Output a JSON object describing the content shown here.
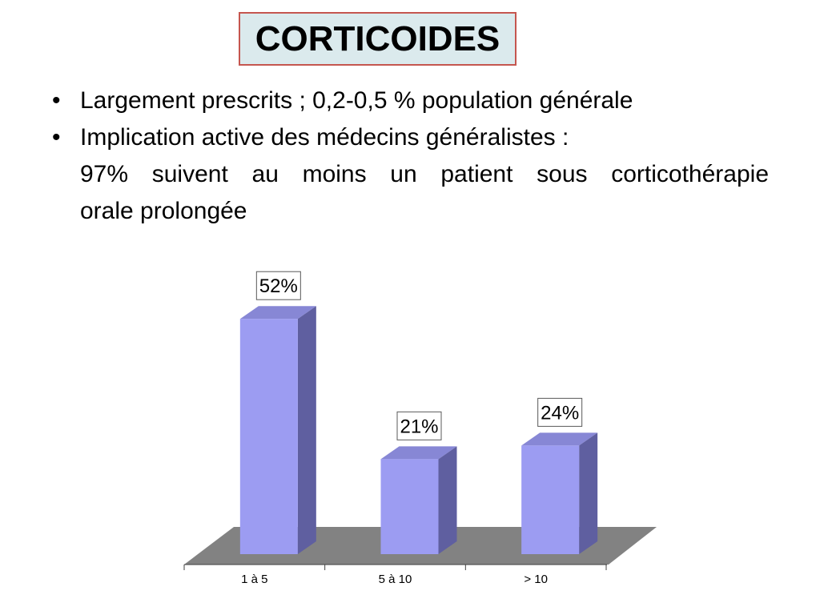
{
  "title": {
    "text": "CORTICOIDES"
  },
  "bullets": [
    {
      "marker": "•",
      "text": "Largement prescrits ; 0,2-0,5 % population générale"
    },
    {
      "marker": "•",
      "text": "Implication active des médecins généralistes :"
    }
  ],
  "continuation": {
    "line1": "97% suivent au moins un patient sous corticothérapie",
    "line2": "orale prolongée"
  },
  "chart_data": {
    "type": "bar",
    "style": "3d-column",
    "title": "",
    "xlabel": "",
    "ylabel": "",
    "unit": "%",
    "categories": [
      "1 à 5",
      "5 à 10",
      "> 10"
    ],
    "values": [
      52,
      21,
      24
    ],
    "data_labels": [
      "52%",
      "21%",
      "24%"
    ],
    "ylim": [
      0,
      52
    ],
    "grid": false,
    "legend": "none",
    "colors": {
      "bar_front": "#9c9cf2",
      "bar_top": "#8787d5",
      "bar_side": "#5f5fa0",
      "floor": "#828282",
      "axis": "#404040",
      "label_box_bg": "#ffffff",
      "label_box_border": "#595959",
      "label_text": "#000000"
    }
  },
  "colors": {
    "background": "#ffffff",
    "title_bg": "#dbeaed",
    "title_border": "#c5564f",
    "text": "#000000"
  }
}
